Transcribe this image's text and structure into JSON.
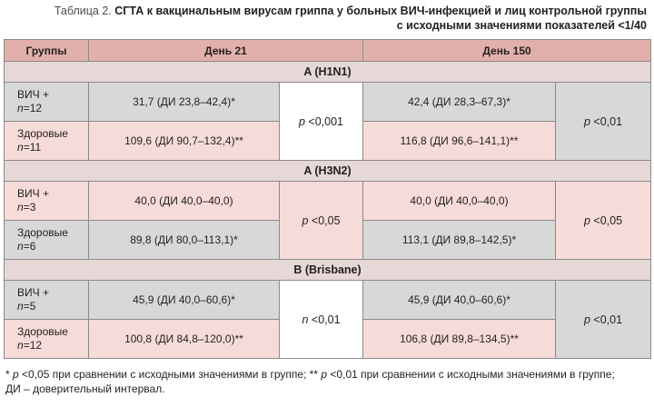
{
  "caption": {
    "label": "Таблица 2.",
    "title_line1": "СГТА к вакцинальным вирусам гриппа у больных ВИЧ-инфекцией и лиц контрольной группы",
    "title_line2": "с исходными значениями показателей <1/40"
  },
  "header": {
    "col_groups": "Группы",
    "col_day21": "День 21",
    "col_day150": "День 150"
  },
  "sections": [
    {
      "title": "A (H1N1)",
      "rows": [
        {
          "group": "ВИЧ +",
          "n_prefix": "n",
          "n_value": "=12",
          "day21": "31,7 (ДИ 23,8–42,4)*",
          "day150": "42,4 (ДИ 28,3–67,3)*"
        },
        {
          "group": "Здоровые",
          "n_prefix": "n",
          "n_value": "=11",
          "day21": "109,6 (ДИ 90,7–132,4)**",
          "day150": "116,8 (ДИ 96,6–141,1)**"
        }
      ],
      "p21_prefix": "p",
      "p21_value": " <0,001",
      "p150_prefix": "p",
      "p150_value": " <0,01"
    },
    {
      "title": "A (H3N2)",
      "rows": [
        {
          "group": "ВИЧ +",
          "n_prefix": "n",
          "n_value": "=3",
          "day21": "40,0 (ДИ 40,0–40,0)",
          "day150": "40,0 (ДИ 40,0–40,0)"
        },
        {
          "group": "Здоровые",
          "n_prefix": "n",
          "n_value": "=6",
          "day21": "89,8 (ДИ 80,0–113,1)*",
          "day150": "113,1 (ДИ 89,8–142,5)*"
        }
      ],
      "p21_prefix": "p",
      "p21_value": " <0,05",
      "p150_prefix": "p",
      "p150_value": " <0,05"
    },
    {
      "title": "B (Brisbane)",
      "rows": [
        {
          "group": "ВИЧ +",
          "n_prefix": "n",
          "n_value": "=5",
          "day21": "45,9 (ДИ 40,0–60,6)*",
          "day150": "45,9 (ДИ 40,0–60,6)*"
        },
        {
          "group": "Здоровые",
          "n_prefix": "n",
          "n_value": "=12",
          "day21": "100,8 (ДИ 84,8–120,0)**",
          "day150": "106,8 (ДИ 89,8–134,5)**"
        }
      ],
      "p21_prefix": "n",
      "p21_value": " <0,01",
      "p150_prefix": "p",
      "p150_value": " <0,01"
    }
  ],
  "footnote": {
    "line1_a": "* ",
    "line1_p1": "p",
    "line1_b": " <0,05 при сравнении с исходными значениями в группе; ** ",
    "line1_p2": "p",
    "line1_c": " <0,01 при сравнении с исходными значениями в группе;",
    "line2": "ДИ – доверительный интервал."
  }
}
